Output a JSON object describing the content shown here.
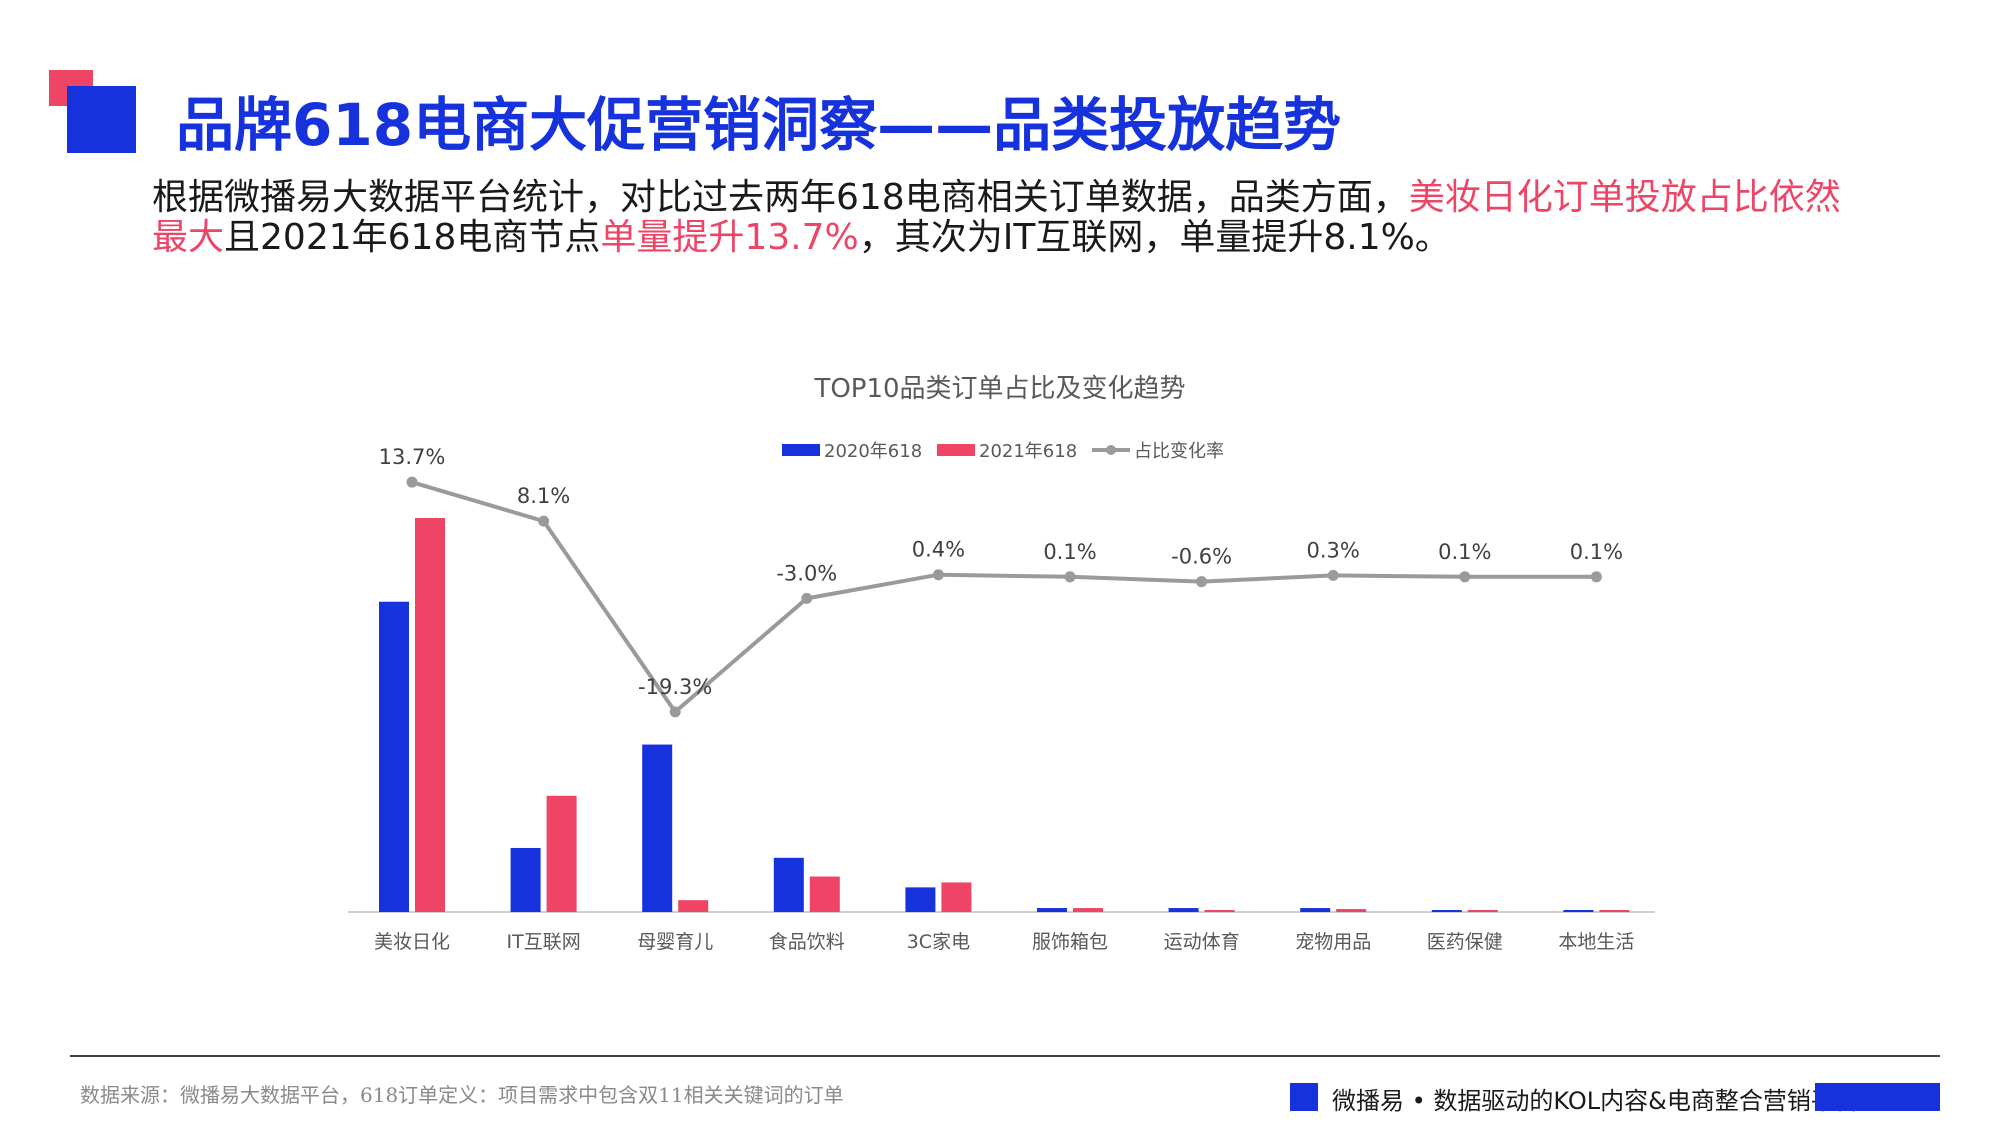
{
  "colors": {
    "blue": "#1632dc",
    "red": "#ee4466",
    "grey": "#9a9a9a"
  },
  "header": {
    "title": "品牌618电商大促营销洞察——品类投放趋势"
  },
  "intro": {
    "part1": "根据微播易大数据平台统计，对比过去两年618电商相关订单数据，品类方面，",
    "hl1": "美妆日化订单投放占比依然最大",
    "part2": "且2021年618电商节点",
    "hl2": "单量提升13.7%",
    "part3": "，其次为IT互联网，单量提升8.1%。"
  },
  "chart_data": {
    "type": "bar",
    "title": "TOP10品类订单占比及变化趋势",
    "legend_position": "top",
    "categories": [
      "美妆日化",
      "IT互联网",
      "母婴育儿",
      "食品饮料",
      "3C家电",
      "服饰箱包",
      "运动体育",
      "宠物用品",
      "医药保健",
      "本地生活"
    ],
    "series": [
      {
        "name": "2020年618",
        "type": "bar",
        "color": "#1632dc",
        "values": [
          31.5,
          6.5,
          17.0,
          5.5,
          2.5,
          0.4,
          0.4,
          0.4,
          0.2,
          0.2
        ]
      },
      {
        "name": "2021年618",
        "type": "bar",
        "color": "#ee4466",
        "values": [
          40.0,
          11.8,
          1.2,
          3.6,
          3.0,
          0.4,
          0.2,
          0.3,
          0.2,
          0.2
        ]
      },
      {
        "name": "占比变化率",
        "type": "line",
        "color": "#9a9a9a",
        "values": [
          13.7,
          8.1,
          -19.3,
          -3.0,
          0.4,
          0.1,
          -0.6,
          0.3,
          0.1,
          0.1
        ],
        "labels": [
          "13.7%",
          "8.1%",
          "-19.3%",
          "-3.0%",
          "0.4%",
          "0.1%",
          "-0.6%",
          "0.3%",
          "0.1%",
          "0.1%"
        ]
      }
    ],
    "ylim_bar": [
      0,
      40
    ],
    "ylim_line": [
      -20,
      14
    ],
    "grid": false
  },
  "footer": {
    "source": "数据来源：微播易大数据平台，618订单定义：项目需求中包含双11相关关键词的订单",
    "tagline": "微播易 • 数据驱动的KOL内容&电商整合营销平台"
  }
}
